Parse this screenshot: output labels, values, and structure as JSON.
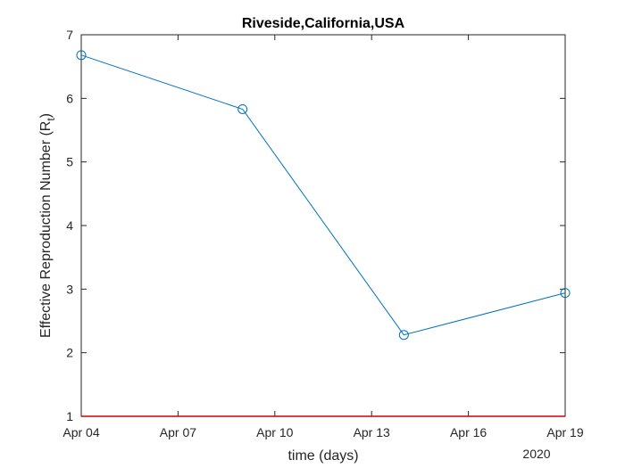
{
  "chart_data": {
    "type": "line",
    "title": "Riveside,California,USA",
    "xlabel": "time (days)",
    "ylabel": "Effective Reproduction Number (R",
    "ylabel_subscript": "t",
    "ylabel_close": ")",
    "x_secondary_label": "2020",
    "x_tick_labels": [
      "Apr 04",
      "Apr 07",
      "Apr 10",
      "Apr 13",
      "Apr 16",
      "Apr 19"
    ],
    "x_tick_dates": [
      "2020-04-04",
      "2020-04-07",
      "2020-04-10",
      "2020-04-13",
      "2020-04-16",
      "2020-04-19"
    ],
    "xlim": [
      "2020-04-04",
      "2020-04-19"
    ],
    "ylim": [
      1,
      7
    ],
    "y_ticks": [
      1,
      2,
      3,
      4,
      5,
      6,
      7
    ],
    "grid": false,
    "series": [
      {
        "x": [
          "2020-04-04",
          "2020-04-09",
          "2020-04-14",
          "2020-04-19"
        ],
        "values": [
          6.68,
          5.83,
          2.28,
          2.94
        ],
        "color": "#0072bd",
        "marker": "circle"
      }
    ],
    "reference_line": {
      "y": 1,
      "color": "#d00000"
    }
  }
}
